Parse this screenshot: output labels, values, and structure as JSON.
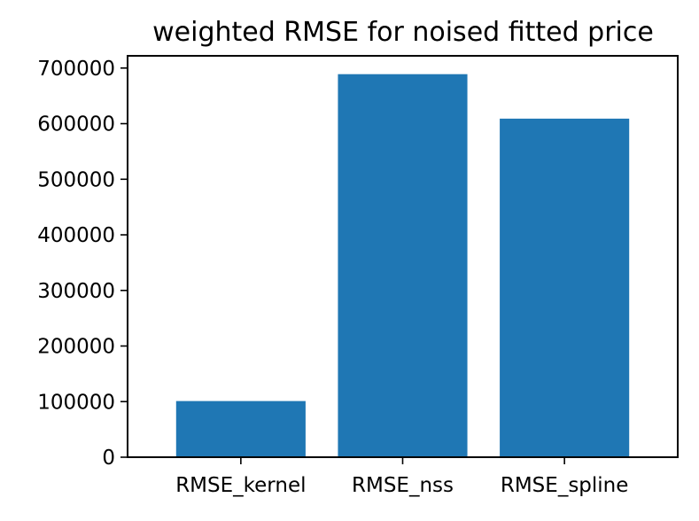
{
  "chart_data": {
    "type": "bar",
    "title": "weighted RMSE for noised fitted price",
    "xlabel": "",
    "ylabel": "",
    "categories": [
      "RMSE_kernel",
      "RMSE_nss",
      "RMSE_spline"
    ],
    "values": [
      101000,
      689000,
      609000
    ],
    "ylim": [
      0,
      722000
    ],
    "yticks": [
      0,
      100000,
      200000,
      300000,
      400000,
      500000,
      600000,
      700000
    ],
    "ytick_labels": [
      "0",
      "100000",
      "200000",
      "300000",
      "400000",
      "500000",
      "600000",
      "700000"
    ],
    "grid": false,
    "legend": "none",
    "bar_color": "#1f77b4"
  }
}
